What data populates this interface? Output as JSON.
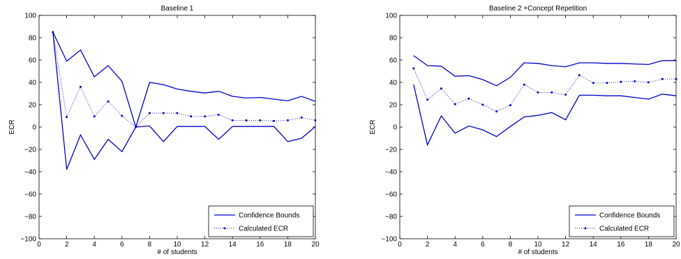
{
  "chart_data": [
    {
      "type": "line",
      "title": "Baseline 1",
      "xlabel": "# of students",
      "ylabel": "ECR",
      "xlim": [
        0,
        20
      ],
      "ylim": [
        -100,
        100
      ],
      "xticks": [
        0,
        2,
        4,
        6,
        8,
        10,
        12,
        14,
        16,
        18,
        20
      ],
      "yticks": [
        -100,
        -80,
        -60,
        -40,
        -20,
        0,
        20,
        40,
        60,
        80,
        100
      ],
      "grid": false,
      "legend_position": "bottom-right",
      "x": [
        1,
        2,
        3,
        4,
        5,
        6,
        7,
        8,
        9,
        10,
        11,
        12,
        13,
        14,
        15,
        16,
        17,
        18,
        19,
        20
      ],
      "series": [
        {
          "name": "Confidence Bounds",
          "style": "solid",
          "color": "#0000cc",
          "values": [
            85,
            59,
            69,
            45,
            55,
            41,
            0,
            40,
            38,
            34,
            32,
            30.5,
            32,
            27.5,
            26,
            26.5,
            25,
            23.5,
            27.5,
            23
          ]
        },
        {
          "name": "",
          "style": "solid",
          "color": "#0000cc",
          "values": [
            85,
            -38,
            -7,
            -29,
            -11,
            -22,
            0,
            1,
            -13,
            0.5,
            0.5,
            0.5,
            -11,
            0.5,
            0.5,
            0.5,
            0.5,
            -13,
            -10,
            0.5
          ]
        },
        {
          "name": "Calculated ECR",
          "style": "dotted-marker",
          "color": "#0000cc",
          "values": [
            85,
            9,
            36,
            9.5,
            23,
            10,
            0,
            12.5,
            12.5,
            12.5,
            9.5,
            9.5,
            11,
            6,
            6,
            6,
            5.5,
            6,
            8.5,
            6
          ]
        }
      ]
    },
    {
      "type": "line",
      "title": "Baseline 2 +Concept Repetition",
      "xlabel": "# of students",
      "ylabel": "ECR",
      "xlim": [
        0,
        20
      ],
      "ylim": [
        -100,
        100
      ],
      "xticks": [
        0,
        2,
        4,
        6,
        8,
        10,
        12,
        14,
        16,
        18,
        20
      ],
      "yticks": [
        -100,
        -80,
        -60,
        -40,
        -20,
        0,
        20,
        40,
        60,
        80,
        100
      ],
      "grid": false,
      "legend_position": "bottom-right",
      "x": [
        1,
        2,
        3,
        4,
        5,
        6,
        7,
        8,
        9,
        10,
        11,
        12,
        13,
        14,
        15,
        16,
        17,
        18,
        19,
        20
      ],
      "series": [
        {
          "name": "Confidence Bounds",
          "style": "solid",
          "color": "#0000cc",
          "values": [
            64,
            55,
            54.5,
            45.5,
            46,
            42.5,
            37,
            44.5,
            57.5,
            57,
            55,
            54,
            57.5,
            57.5,
            57,
            57,
            56.5,
            56,
            59.5,
            59.5
          ]
        },
        {
          "name": "",
          "style": "solid",
          "color": "#0000cc",
          "values": [
            38,
            -16,
            10,
            -5.5,
            1,
            -2.5,
            -8.5,
            0.5,
            9,
            10.5,
            13,
            6.5,
            28.5,
            28.5,
            28,
            28,
            26.5,
            25,
            29.5,
            28
          ]
        },
        {
          "name": "Calculated ECR",
          "style": "dotted-marker",
          "color": "#0000cc",
          "values": [
            52.5,
            24.5,
            34.5,
            20.5,
            25.5,
            20,
            14,
            19.5,
            38,
            31,
            31,
            29,
            46.5,
            39.5,
            39.5,
            40.5,
            41,
            40,
            43,
            43
          ]
        }
      ]
    }
  ]
}
